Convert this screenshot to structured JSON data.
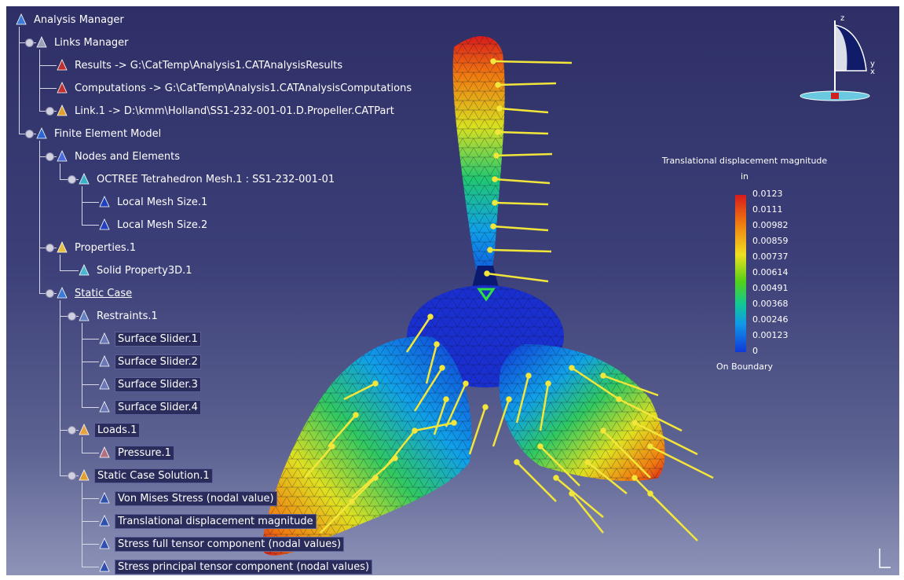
{
  "tree": {
    "items": [
      {
        "label": "Analysis Manager",
        "icon": "analysis-manager-icon"
      },
      {
        "label": "Links Manager",
        "icon": "links-manager-icon"
      },
      {
        "label": "Results -> G:\\CatTemp\\Analysis1.CATAnalysisResults",
        "icon": "results-link-icon"
      },
      {
        "label": "Computations -> G:\\CatTemp\\Analysis1.CATAnalysisComputations",
        "icon": "computations-link-icon"
      },
      {
        "label": "Link.1 -> D:\\kmm\\Holland\\SS1-232-001-01.D.Propeller.CATPart",
        "icon": "part-link-icon"
      },
      {
        "label": "Finite Element Model",
        "icon": "fem-icon"
      },
      {
        "label": "Nodes and Elements",
        "icon": "nodes-elements-icon"
      },
      {
        "label": "OCTREE Tetrahedron Mesh.1 : SS1-232-001-01",
        "icon": "tetra-mesh-icon"
      },
      {
        "label": "Local Mesh Size.1",
        "icon": "local-mesh-size-icon"
      },
      {
        "label": "Local Mesh Size.2",
        "icon": "local-mesh-size-icon"
      },
      {
        "label": "Properties.1",
        "icon": "folder-icon"
      },
      {
        "label": "Solid Property3D.1",
        "icon": "solid-property-icon"
      },
      {
        "label": "Static Case",
        "icon": "static-case-icon"
      },
      {
        "label": "Restraints.1",
        "icon": "restraints-icon"
      },
      {
        "label": "Surface Slider.1",
        "icon": "surface-slider-icon"
      },
      {
        "label": "Surface Slider.2",
        "icon": "surface-slider-icon"
      },
      {
        "label": "Surface Slider.3",
        "icon": "surface-slider-icon"
      },
      {
        "label": "Surface Slider.4",
        "icon": "surface-slider-icon"
      },
      {
        "label": "Loads.1",
        "icon": "loads-icon"
      },
      {
        "label": "Pressure.1",
        "icon": "pressure-icon"
      },
      {
        "label": "Static Case Solution.1",
        "icon": "solution-icon"
      },
      {
        "label": "Von Mises Stress (nodal value)",
        "icon": "image-icon"
      },
      {
        "label": "Translational displacement magnitude",
        "icon": "image-icon"
      },
      {
        "label": "Stress full tensor component (nodal values)",
        "icon": "image-icon"
      },
      {
        "label": "Stress principal tensor component (nodal values)",
        "icon": "image-icon"
      }
    ]
  },
  "legend": {
    "title": "Translational displacement magnitude",
    "unit": "in",
    "values": [
      "0.0123",
      "0.0111",
      "0.00982",
      "0.00859",
      "0.00737",
      "0.00614",
      "0.00491",
      "0.00368",
      "0.00246",
      "0.00123",
      "0"
    ],
    "footer": "On Boundary"
  },
  "compass": {
    "axis_z": "z",
    "axis_y": "y",
    "axis_x": "x"
  },
  "colors": {
    "background_top": "#2e2f66",
    "background_bottom": "#8e94b8",
    "arrow": "#f2e63a",
    "scale_max": "#d81b1b",
    "scale_min": "#1038d8"
  }
}
